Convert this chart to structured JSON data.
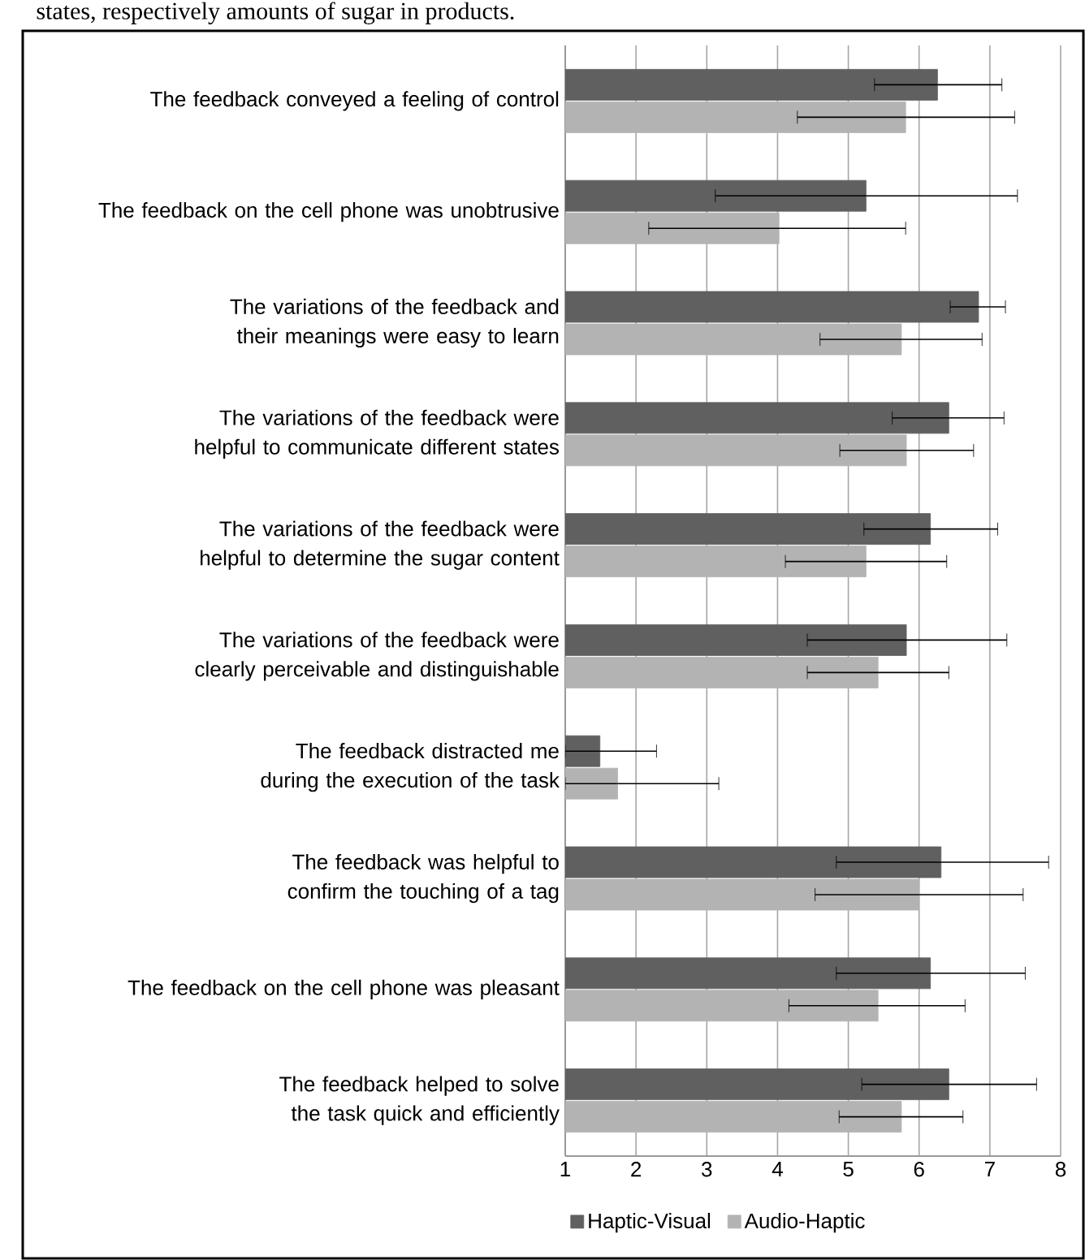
{
  "chart_data": {
    "type": "bar",
    "orientation": "horizontal",
    "categories": [
      "The feedback conveyed a feeling of control",
      "The feedback on the cell phone was unobtrusive",
      "The variations of the feedback and their meanings were easy to learn",
      "The variations of the feedback were helpful to communicate different states",
      "The variations of the feedback were helpful to determine the sugar content",
      "The variations of the feedback were clearly perceivable and distinguishable",
      "The feedback distracted me during the execution of the task",
      "The feedback was helpful to confirm the touching of a tag",
      "The feedback on the cell phone was pleasant",
      "The feedback helped to solve the task quick and efficiently"
    ],
    "series": [
      {
        "name": "Haptic-Visual",
        "color": "#606060",
        "values": [
          6.26,
          5.25,
          6.84,
          6.42,
          6.16,
          5.82,
          1.49,
          6.31,
          6.16,
          6.42
        ],
        "errors": [
          [
            5.37,
            7.17
          ],
          [
            3.12,
            7.39
          ],
          [
            6.44,
            7.22
          ],
          [
            5.62,
            7.2
          ],
          [
            5.22,
            7.11
          ],
          [
            4.42,
            7.24
          ],
          [
            1,
            2.29
          ],
          [
            4.83,
            7.83
          ],
          [
            4.83,
            7.5
          ],
          [
            5.19,
            7.66
          ]
        ]
      },
      {
        "name": "Audio-Haptic",
        "color": "#b3b3b3",
        "values": [
          5.81,
          4.02,
          5.75,
          5.82,
          5.25,
          5.42,
          1.74,
          6.0,
          5.42,
          5.75
        ],
        "errors": [
          [
            4.28,
            7.35
          ],
          [
            2.18,
            5.81
          ],
          [
            4.6,
            6.89
          ],
          [
            4.88,
            6.77
          ],
          [
            4.11,
            6.39
          ],
          [
            4.42,
            6.42
          ],
          [
            1,
            3.17
          ],
          [
            4.53,
            7.47
          ],
          [
            4.16,
            6.65
          ],
          [
            4.87,
            6.62
          ]
        ]
      }
    ],
    "xlim": [
      1,
      8
    ],
    "xticks": [
      1,
      2,
      3,
      4,
      5,
      6,
      7,
      8
    ],
    "grid": "x",
    "legend": "bottom",
    "annotations": [
      "states, respectively amounts of sugar in products."
    ]
  }
}
